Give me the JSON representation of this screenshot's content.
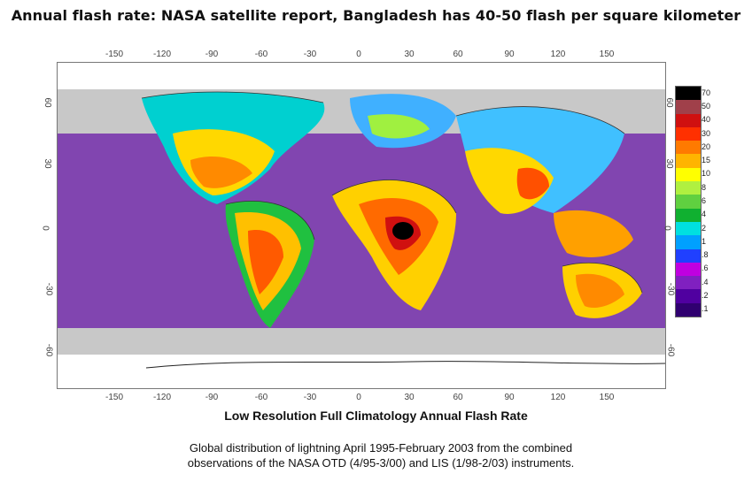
{
  "headline": "Annual flash rate: NASA satellite report, Bangladesh has 40-50 flash per square kilometer",
  "map": {
    "title": "Low Resolution Full Climatology Annual Flash Rate",
    "longitude_ticks": [
      "-150",
      "-120",
      "-90",
      "-60",
      "-30",
      "0",
      "30",
      "60",
      "90",
      "120",
      "150"
    ],
    "latitude_ticks": [
      "60",
      "30",
      "0",
      "-30",
      "-60"
    ],
    "legend_labels": [
      "70",
      "50",
      "40",
      "30",
      "20",
      "15",
      "10",
      "8",
      "6",
      "4",
      "2",
      "1",
      ".8",
      ".6",
      ".4",
      ".2",
      ".1"
    ],
    "legend_colors": [
      "#000000",
      "#a0404a",
      "#d01010",
      "#ff3000",
      "#ff7a00",
      "#ffb400",
      "#ffff00",
      "#b0f040",
      "#60d040",
      "#10b030",
      "#00e0e0",
      "#00a0ff",
      "#2040ff",
      "#c000e0",
      "#8020c0",
      "#5000a0",
      "#300070"
    ]
  },
  "caption": {
    "line1": "Global distribution of lightning April 1995-February 2003 from the combined",
    "line2": "observations of the NASA OTD (4/95-3/00) and LIS (1/98-2/03) instruments."
  }
}
